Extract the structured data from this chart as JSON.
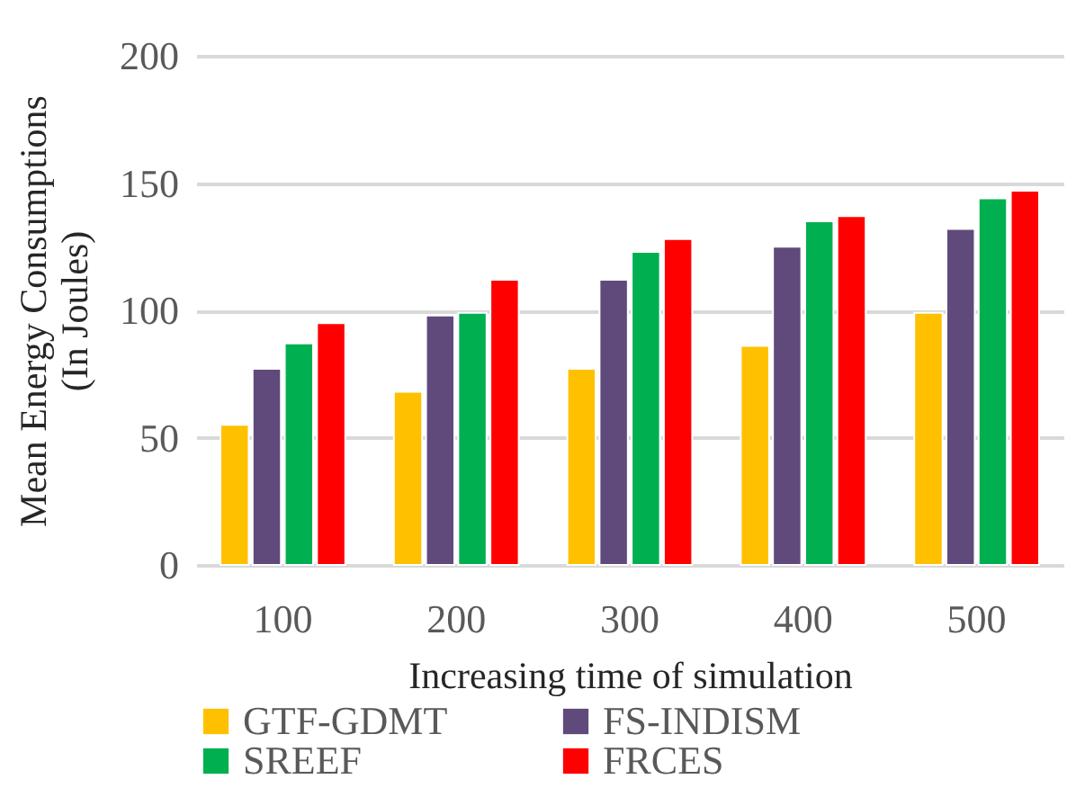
{
  "chart_data": {
    "type": "bar",
    "xlabel": "Increasing  time of simulation",
    "ylabel": "Mean Energy Consumptions\n(In Joules)",
    "categories": [
      "100",
      "200",
      "300",
      "400",
      "500"
    ],
    "series": [
      {
        "name": "GTF-GDMT",
        "color": "#ffc000",
        "values": [
          55,
          68,
          77,
          86,
          99
        ]
      },
      {
        "name": "FS-INDISM",
        "color": "#604a7b",
        "values": [
          77,
          98,
          112,
          125,
          132
        ]
      },
      {
        "name": "SREEF",
        "color": "#00b050",
        "values": [
          87,
          99,
          123,
          135,
          144
        ]
      },
      {
        "name": "FRCES",
        "color": "#ff0000",
        "values": [
          95,
          112,
          128,
          137,
          147
        ]
      }
    ],
    "ylim": [
      0,
      200
    ],
    "yticks": [
      0,
      50,
      100,
      150,
      200
    ],
    "grid": "y",
    "legend": "bottom"
  }
}
